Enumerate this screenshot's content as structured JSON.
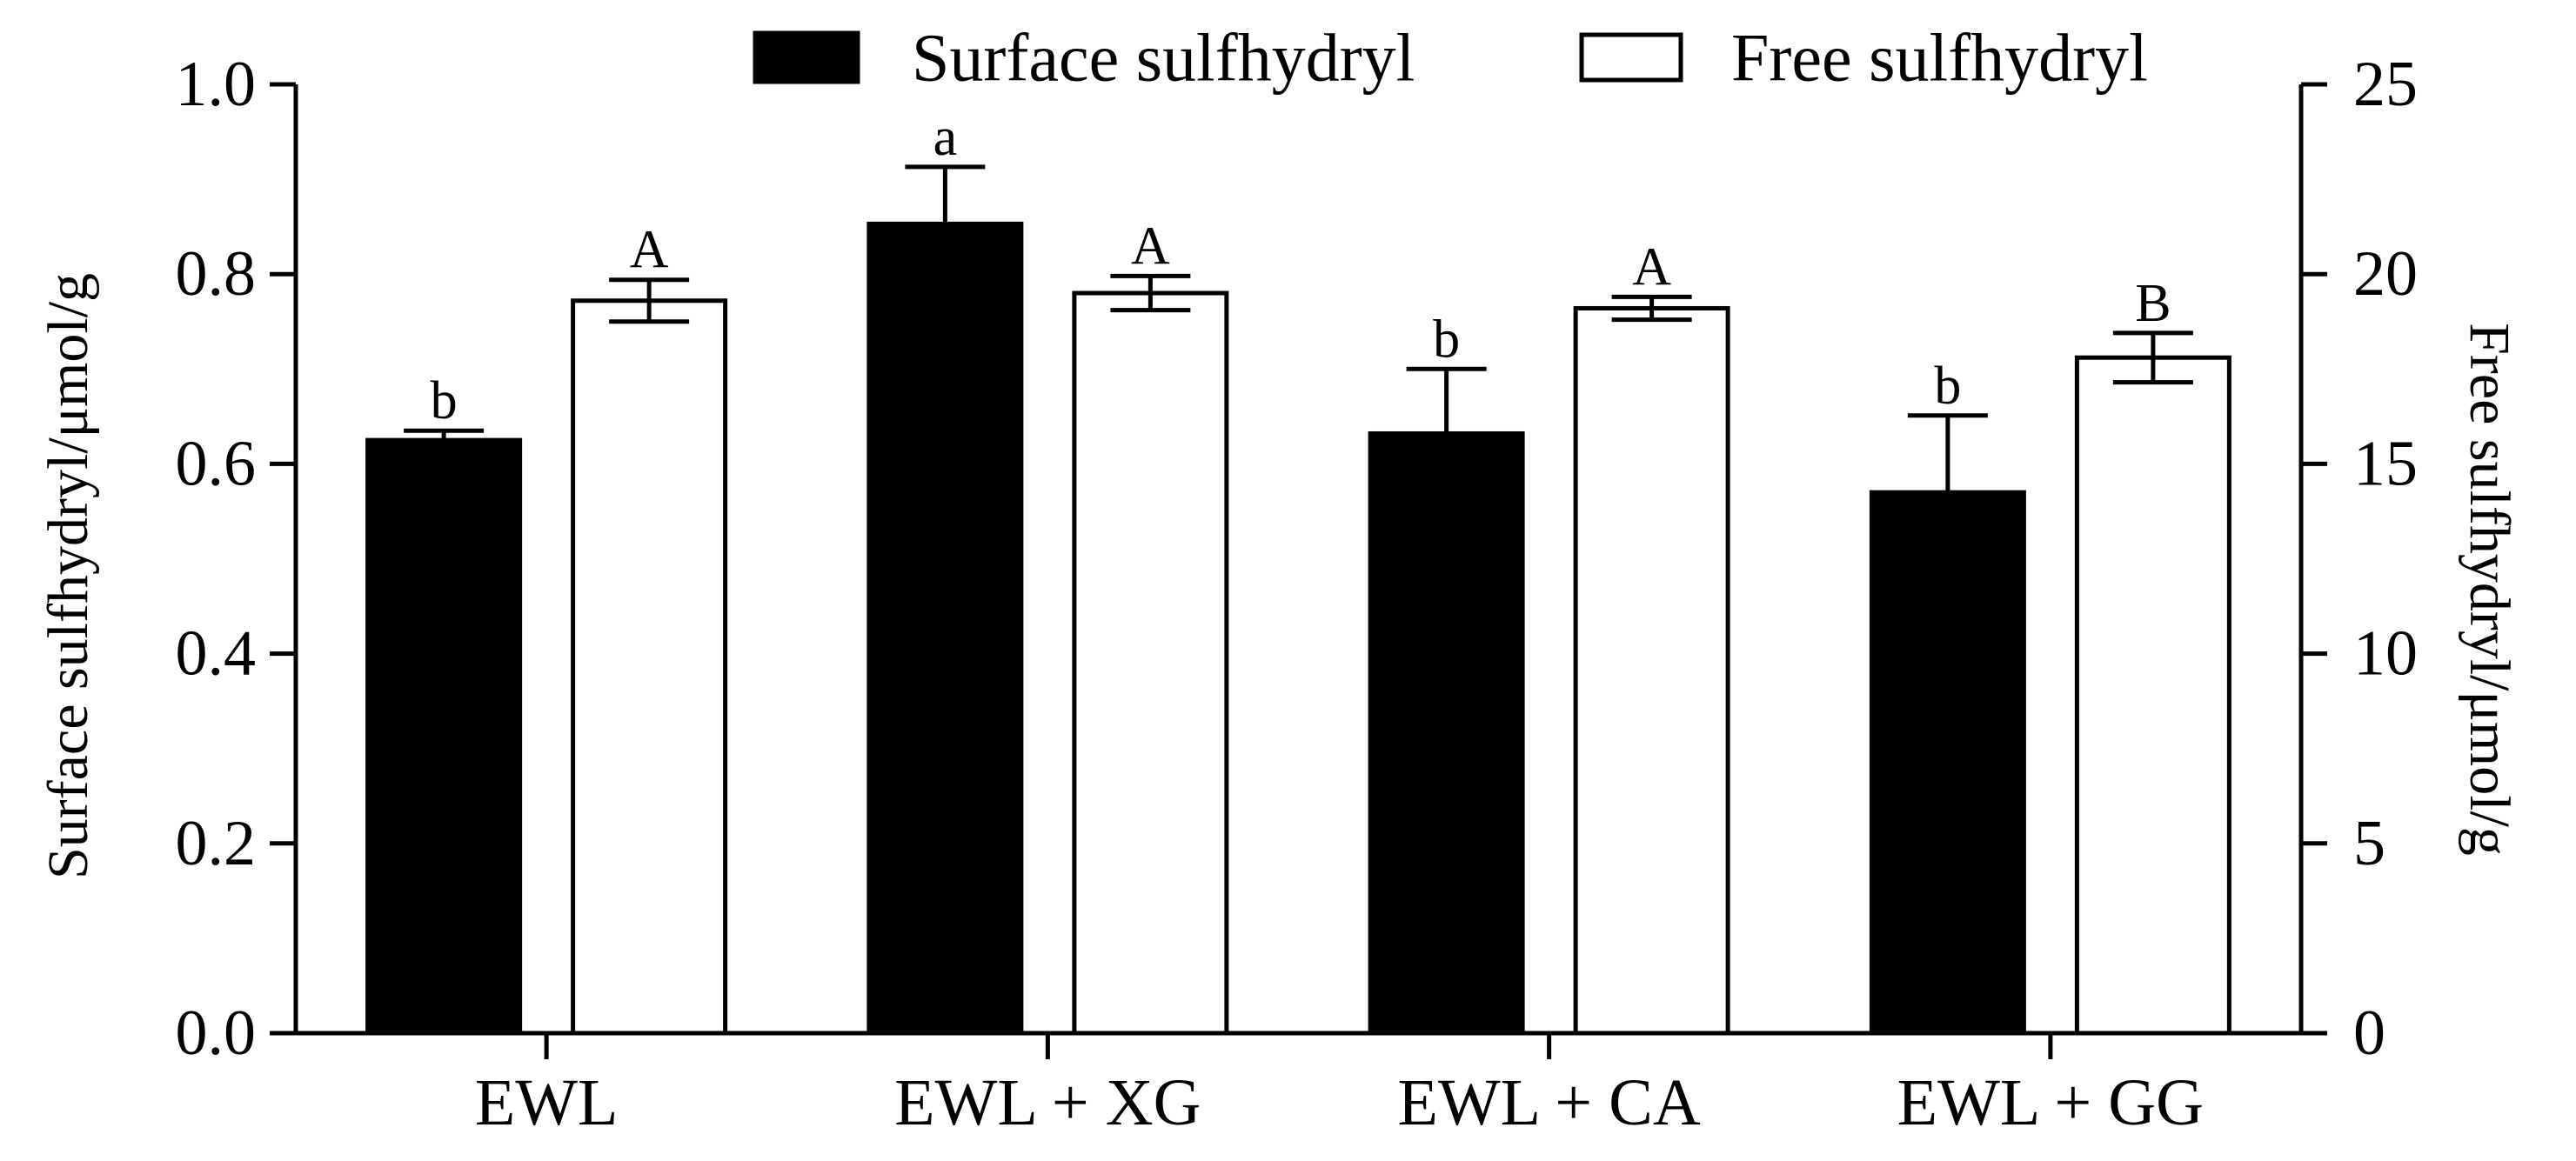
{
  "chart_data": {
    "type": "bar",
    "categories": [
      "EWL",
      "EWL + XG",
      "EWL + CA",
      "EWL + GG"
    ],
    "series": [
      {
        "name": "Surface sulfhydryl",
        "axis": "left",
        "fill": "#000000",
        "values": [
          0.625,
          0.853,
          0.632,
          0.57
        ],
        "error": [
          0.01,
          0.06,
          0.068,
          0.081
        ],
        "significance": [
          "b",
          "a",
          "b",
          "b"
        ]
      },
      {
        "name": "Free sulfhydryl",
        "axis": "right",
        "fill": "#ffffff",
        "values": [
          19.3,
          19.5,
          19.1,
          17.8
        ],
        "error": [
          0.55,
          0.45,
          0.3,
          0.65
        ],
        "significance": [
          "A",
          "A",
          "A",
          "B"
        ]
      }
    ],
    "left_axis": {
      "label": "Surface sulfhydryl/μmol/g",
      "ylim": [
        0,
        1.0
      ],
      "ticks": [
        "0.0",
        "0.2",
        "0.4",
        "0.6",
        "0.8",
        "1.0"
      ]
    },
    "right_axis": {
      "label": "Free sulfhydryl/μmol/g",
      "ylim": [
        0,
        25
      ],
      "ticks": [
        "0",
        "5",
        "10",
        "15",
        "20",
        "25"
      ]
    },
    "grid": false,
    "legend_position": "top"
  }
}
